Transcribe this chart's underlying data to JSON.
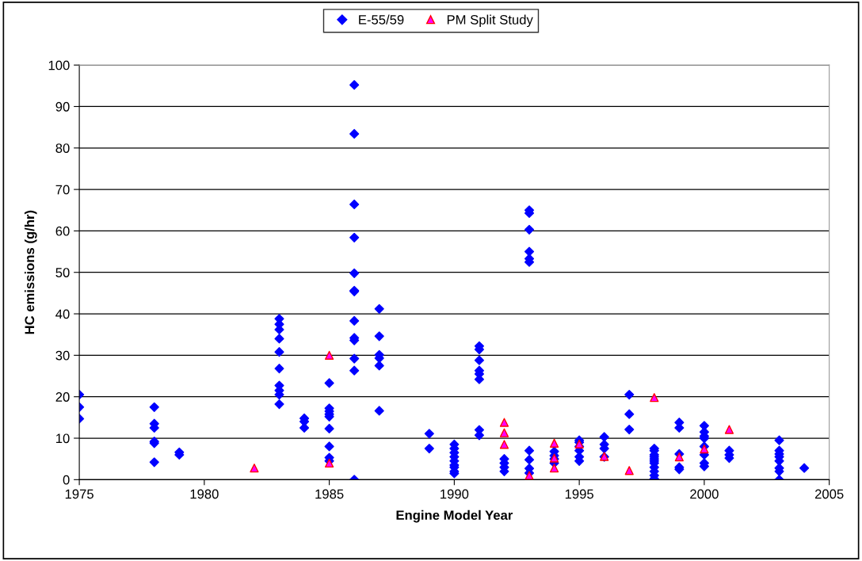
{
  "chart_data": {
    "type": "scatter",
    "xlabel": "Engine Model Year",
    "ylabel": "HC emissions (g/hr)",
    "xlim": [
      1975,
      2005
    ],
    "xticks": [
      1975,
      1980,
      1985,
      1990,
      1995,
      2000,
      2005
    ],
    "ylim": [
      0,
      100
    ],
    "yticks": [
      0,
      10,
      20,
      30,
      40,
      50,
      60,
      70,
      80,
      90,
      100
    ],
    "grid": "y",
    "legend": "top",
    "series": [
      {
        "name": "E-55/59",
        "color": "#0000ff",
        "marker": "diamond",
        "x": [
          1975,
          1975,
          1975,
          1978,
          1978,
          1978,
          1978,
          1978,
          1978,
          1979,
          1979,
          1983,
          1983,
          1983,
          1983,
          1983,
          1983,
          1983,
          1983,
          1983,
          1983,
          1984,
          1984,
          1984,
          1985,
          1985,
          1985,
          1985,
          1985,
          1985,
          1985,
          1985,
          1985,
          1986,
          1986,
          1986,
          1986,
          1986,
          1986,
          1986,
          1986,
          1986,
          1986,
          1986,
          1986,
          1986,
          1987,
          1987,
          1987,
          1987,
          1987,
          1987,
          1989,
          1989,
          1990,
          1990,
          1990,
          1990,
          1990,
          1990,
          1990,
          1990,
          1990,
          1991,
          1991,
          1991,
          1991,
          1991,
          1991,
          1991,
          1991,
          1992,
          1992,
          1992,
          1992,
          1993,
          1993,
          1993,
          1993,
          1993,
          1993,
          1993,
          1993,
          1993,
          1993,
          1994,
          1994,
          1994,
          1994,
          1995,
          1995,
          1995,
          1995,
          1995,
          1995,
          1996,
          1996,
          1996,
          1996,
          1997,
          1997,
          1997,
          1998,
          1998,
          1998,
          1998,
          1998,
          1998,
          1998,
          1998,
          1998,
          1998,
          1998,
          1999,
          1999,
          1999,
          1999,
          1999,
          2000,
          2000,
          2000,
          2000,
          2000,
          2000,
          2000,
          2000,
          2001,
          2001,
          2001,
          2003,
          2003,
          2003,
          2003,
          2003,
          2003,
          2003,
          2003,
          2004
        ],
        "values": [
          20.5,
          17.5,
          14.7,
          17.5,
          13.5,
          12.5,
          9.2,
          8.8,
          4.2,
          6.6,
          6.0,
          38.8,
          37.5,
          36.2,
          34,
          30.8,
          26.8,
          22.7,
          21.5,
          20.5,
          18.2,
          14.8,
          14.0,
          12.5,
          23.3,
          17.2,
          16.5,
          15.8,
          15.2,
          12.3,
          8.0,
          5.3,
          4.5,
          95.2,
          83.4,
          66.4,
          58.4,
          49.8,
          45.6,
          45.4,
          38.3,
          34.2,
          33.6,
          29.2,
          26.3,
          0,
          41.2,
          34.6,
          30.1,
          29.3,
          27.5,
          16.6,
          11.1,
          7.5,
          8.5,
          7.5,
          6.5,
          5.5,
          4.5,
          3.5,
          3.0,
          2.0,
          1.5,
          32.2,
          31.4,
          28.8,
          26.3,
          25.5,
          24.2,
          12.0,
          10.7,
          5.0,
          4.0,
          3.0,
          2.0,
          65.0,
          64.3,
          60.3,
          55.0,
          53.3,
          52.5,
          7.0,
          4.8,
          2.7,
          1.6,
          6.8,
          5.8,
          5.0,
          4.0,
          9.5,
          9.0,
          8.0,
          7.0,
          5.5,
          4.5,
          10.3,
          8.5,
          7.5,
          5.5,
          20.5,
          15.8,
          12.1,
          7.5,
          7.0,
          6.0,
          5.5,
          5.0,
          4.5,
          4.0,
          3.0,
          2.0,
          1.0,
          0.2,
          13.8,
          12.5,
          6.2,
          3.0,
          2.5,
          13.0,
          11.5,
          10.5,
          10.0,
          8.0,
          6.0,
          4.0,
          3.2,
          7.0,
          6.0,
          5.2,
          9.5,
          7.0,
          6.2,
          5.5,
          4.5,
          2.8,
          2.0,
          0,
          2.8
        ]
      },
      {
        "name": "PM Split Study",
        "color": "#ff00ff",
        "marker": "triangle",
        "x": [
          1982,
          1985,
          1985,
          1992,
          1992,
          1992,
          1993,
          1994,
          1994,
          1994,
          1995,
          1996,
          1997,
          1998,
          1999,
          2000,
          2001
        ],
        "values": [
          2.8,
          30.0,
          4.0,
          13.8,
          11.3,
          8.5,
          1.0,
          8.8,
          5.2,
          2.8,
          8.6,
          5.6,
          2.2,
          19.8,
          5.5,
          7.4,
          12.1
        ]
      }
    ]
  }
}
